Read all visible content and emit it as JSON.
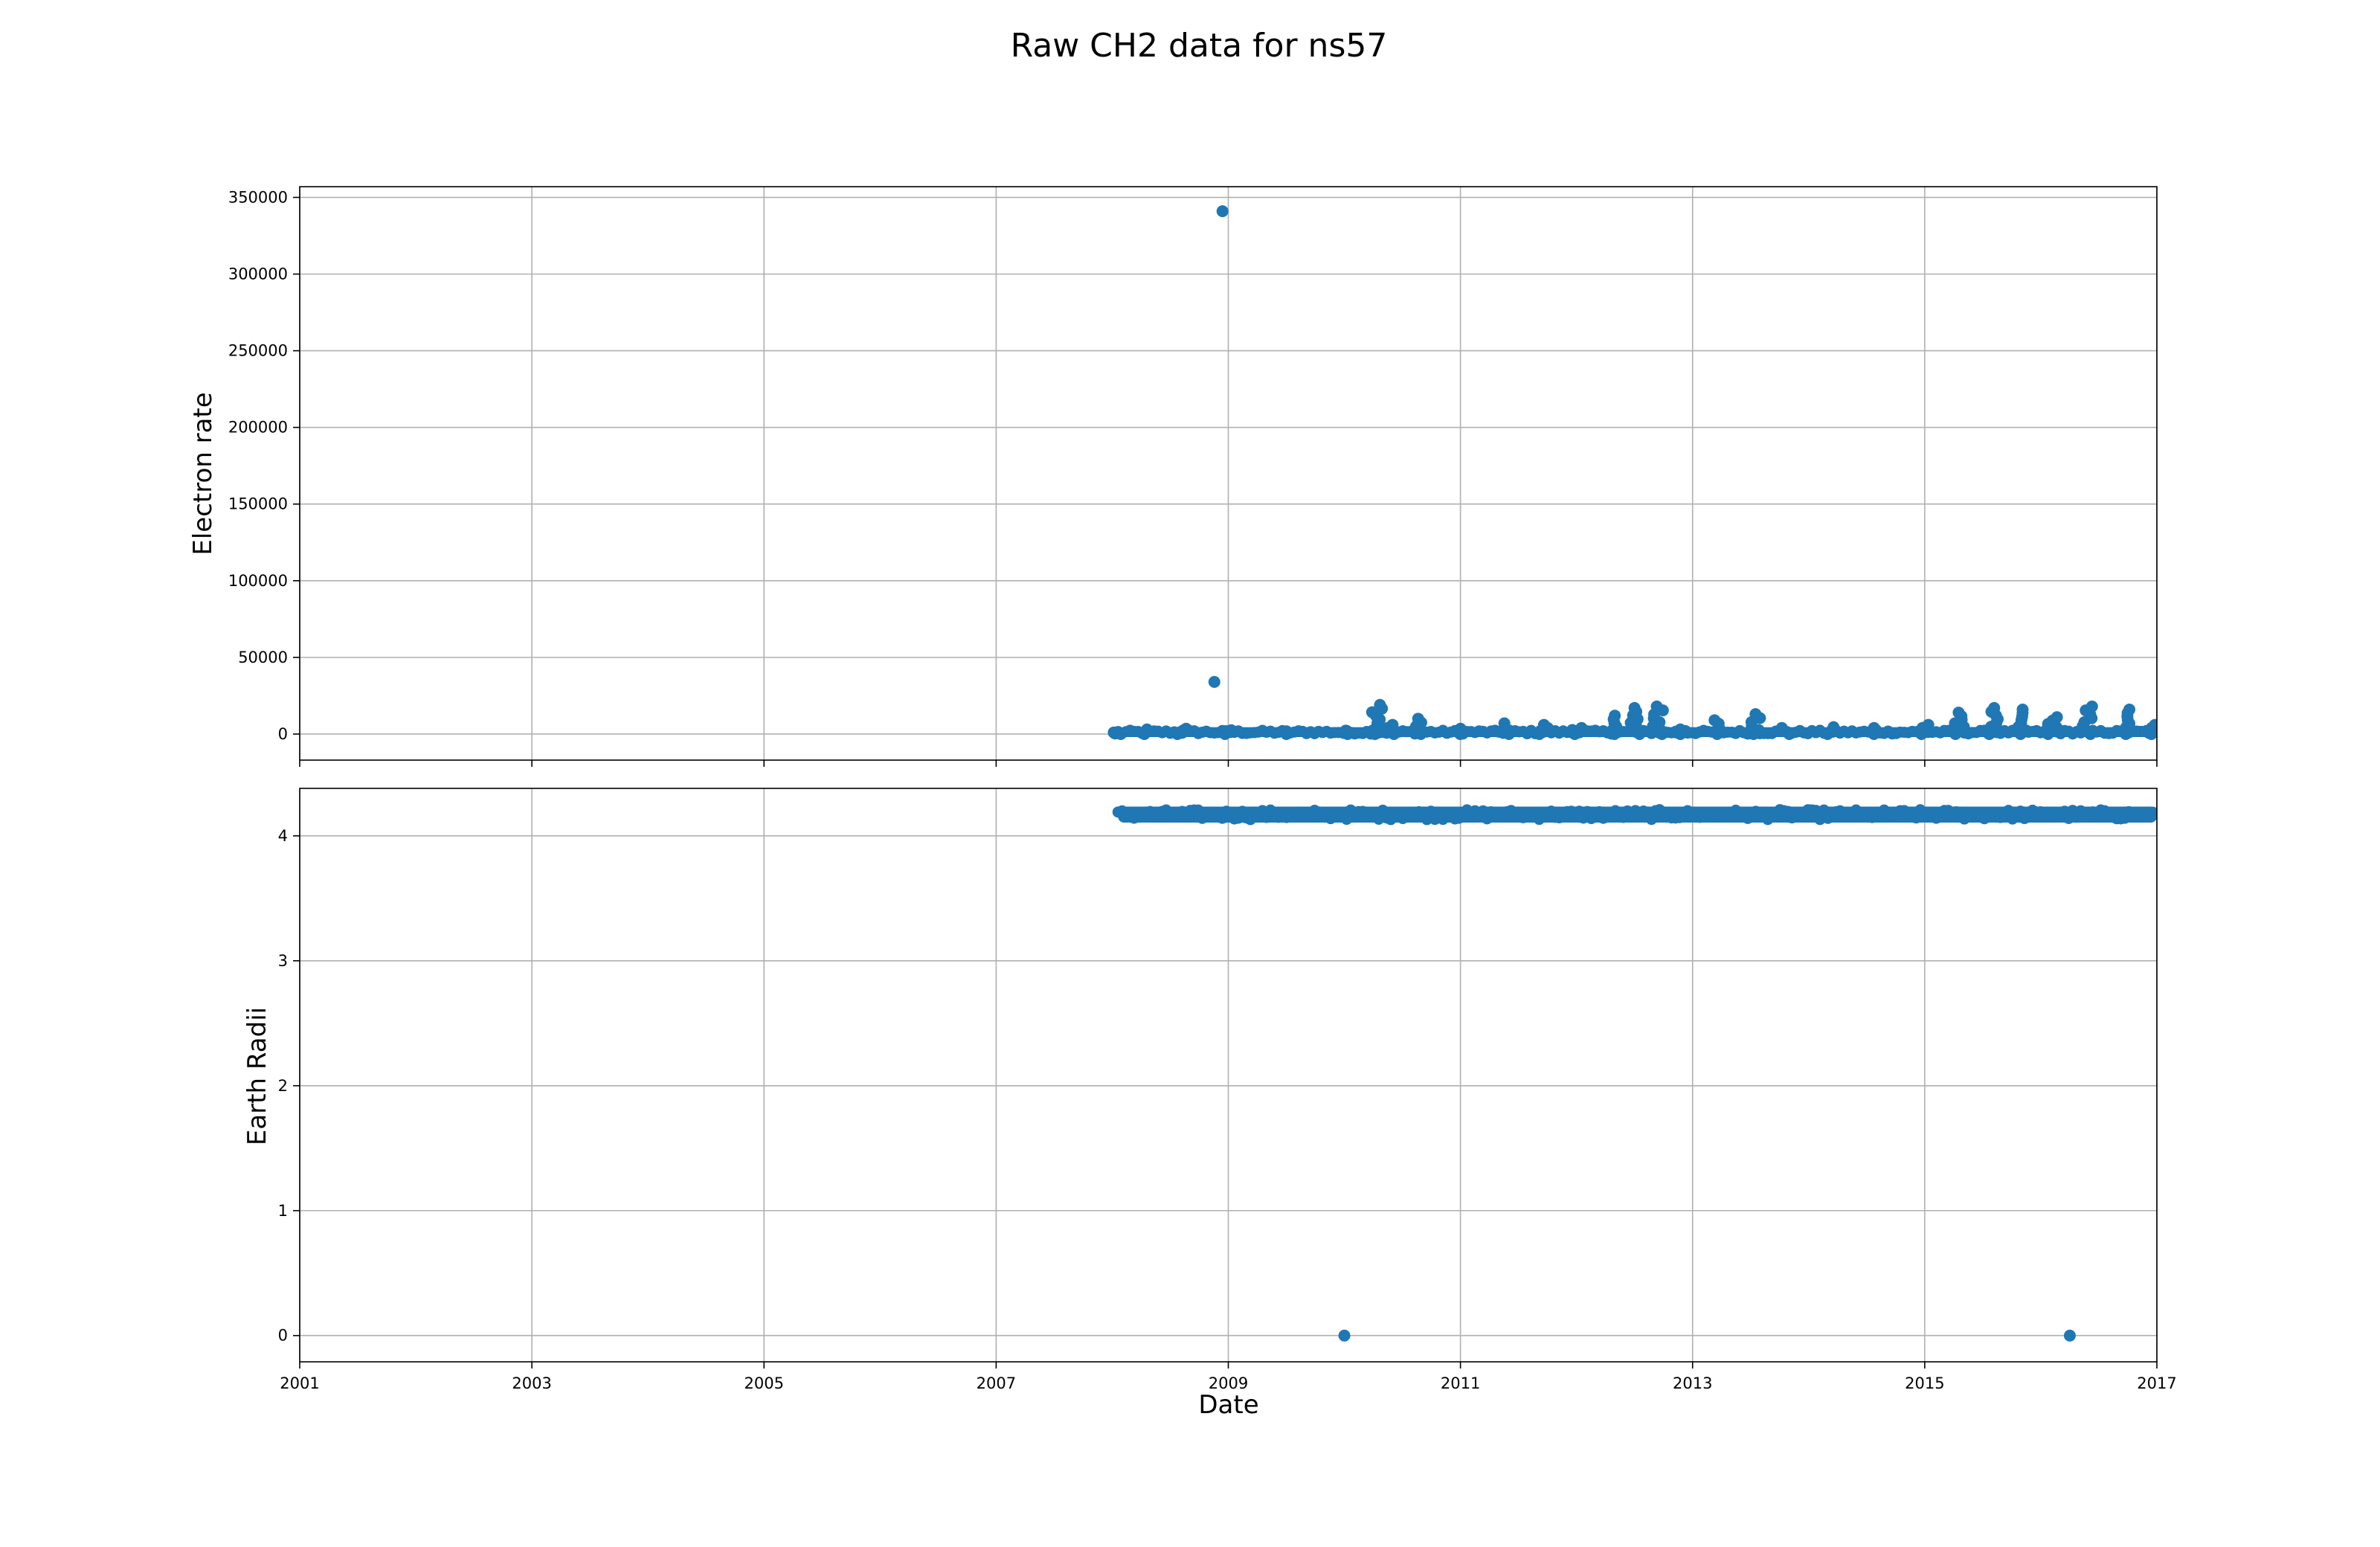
{
  "figure": {
    "title": "Raw CH2 data for ns57",
    "xlabel": "Date"
  },
  "chart_data": [
    {
      "type": "scatter",
      "title": "",
      "xlabel": "",
      "ylabel": "Electron rate",
      "xlim": [
        2001,
        2017
      ],
      "ylim": [
        -17000,
        357000
      ],
      "x_ticks": [
        "2001",
        "2003",
        "2005",
        "2007",
        "2009",
        "2011",
        "2013",
        "2015",
        "2017"
      ],
      "y_ticks": [
        0,
        50000,
        100000,
        150000,
        200000,
        250000,
        300000,
        350000
      ],
      "y_tick_labels": [
        "0",
        "50000",
        "100000",
        "150000",
        "200000",
        "250000",
        "300000",
        "350000"
      ],
      "grid": true,
      "color": "#1f77b4",
      "series": [
        {
          "x": [
            2008.05,
            2008.3,
            2008.6,
            2009.0,
            2009.5,
            2010.0,
            2010.28,
            2010.4,
            2010.62,
            2011.0,
            2011.4,
            2011.72,
            2012.0,
            2012.3,
            2012.5,
            2012.7,
            2012.9,
            2013.2,
            2013.55,
            2013.8,
            2014.2,
            2014.6,
            2015.0,
            2015.3,
            2015.6,
            2015.85,
            2016.1,
            2016.4,
            2016.75,
            2016.95
          ],
          "y": [
            1000,
            3000,
            3500,
            2500,
            2000,
            2200,
            19000,
            6000,
            10000,
            3500,
            7000,
            6000,
            4000,
            12000,
            17000,
            18000,
            3000,
            9000,
            13000,
            4000,
            4500,
            4000,
            6000,
            14000,
            17000,
            16000,
            11000,
            18000,
            16000,
            6000
          ]
        },
        {
          "x": [
            2008.88,
            2008.95
          ],
          "y": [
            34000,
            341000
          ]
        }
      ],
      "dense_band": [
        {
          "x_start": 2008.05,
          "x_end": 2017.0,
          "y_low": 0,
          "y_high": 2500
        }
      ]
    },
    {
      "type": "scatter",
      "title": "",
      "xlabel": "Date",
      "ylabel": "Earth Radii",
      "xlim": [
        2001,
        2017
      ],
      "ylim": [
        -0.21,
        4.38
      ],
      "x_ticks": [
        "2001",
        "2003",
        "2005",
        "2007",
        "2009",
        "2011",
        "2013",
        "2015",
        "2017"
      ],
      "y_ticks": [
        0,
        1,
        2,
        3,
        4
      ],
      "y_tick_labels": [
        "0",
        "1",
        "2",
        "3",
        "4"
      ],
      "grid": true,
      "color": "#1f77b4",
      "series": [
        {
          "x": [
            2010.0,
            2016.25
          ],
          "y": [
            0,
            0
          ]
        }
      ],
      "dense_band": [
        {
          "x_start": 2008.05,
          "x_end": 2017.0,
          "y_low": 4.13,
          "y_high": 4.21
        }
      ]
    }
  ]
}
